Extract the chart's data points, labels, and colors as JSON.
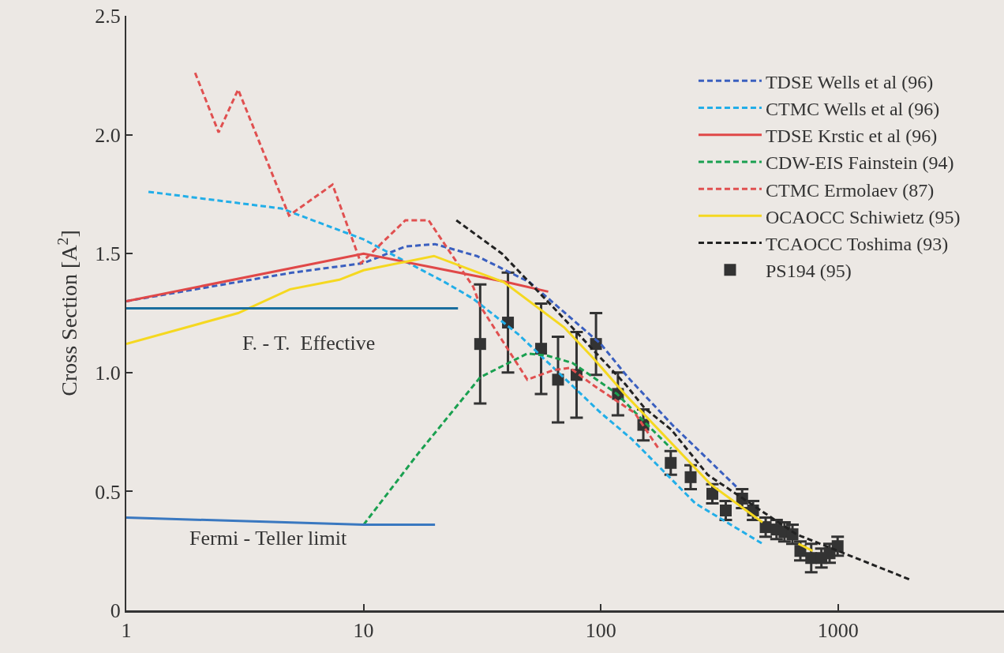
{
  "chart_data": {
    "type": "line",
    "ylabel": "Cross Section [A$^{2}$]",
    "log": "x",
    "xlim": [
      1,
      5000
    ],
    "xticks": [
      1,
      10,
      100,
      1000
    ],
    "ylim": [
      0,
      2.5
    ],
    "yticks": [
      {
        "value": 0,
        "label": "0"
      },
      {
        "value": 0.5,
        "label": "0.5"
      },
      {
        "value": 1,
        "label": "1.0"
      },
      {
        "value": 1.5,
        "label": "1.5"
      },
      {
        "value": 2,
        "label": "2.0"
      },
      {
        "value": 2.5,
        "label": "2.5"
      }
    ],
    "grid": false,
    "legend": "top right",
    "marker": "none",
    "annotations": [
      "F. - T.  Effective",
      "Fermi - Teller limit"
    ],
    "series": [
      {
        "name": "TDSE Wells et al (96)",
        "color": "#3a5fbf",
        "line_style": "dashed",
        "x": [
          1,
          5,
          10,
          15,
          20,
          30,
          50,
          100,
          130,
          200,
          372
        ],
        "values": [
          1.3,
          1.42,
          1.46,
          1.53,
          1.54,
          1.49,
          1.38,
          1.12,
          0.98,
          0.78,
          0.52
        ]
      },
      {
        "name": "CTMC Wells et al (96)",
        "color": "#22aee8",
        "line_style": "dashed",
        "x": [
          1.24,
          4.5,
          10,
          22,
          29,
          45,
          100,
          135,
          250,
          480
        ],
        "values": [
          1.76,
          1.69,
          1.56,
          1.38,
          1.31,
          1.16,
          0.83,
          0.72,
          0.45,
          0.28
        ]
      },
      {
        "name": "TDSE Krstic et al (96)",
        "color": "#e04848",
        "line_style": "solid",
        "x": [
          1,
          10,
          20,
          40,
          60
        ],
        "values": [
          1.3,
          1.5,
          1.44,
          1.38,
          1.34
        ]
      },
      {
        "name": "CDW-EIS Fainstein (94)",
        "color": "#1aa050",
        "line_style": "dashed",
        "x": [
          10,
          17,
          31,
          49,
          60,
          76,
          93,
          117,
          150,
          198
        ],
        "values": [
          0.36,
          0.66,
          0.98,
          1.08,
          1.07,
          1.04,
          0.98,
          0.91,
          0.8,
          0.68
        ]
      },
      {
        "name": "CTMC Ermolaev (87)",
        "color": "#e05050",
        "line_style": "dashed",
        "x": [
          1.95,
          2.45,
          2.96,
          4.85,
          7.4,
          9.75,
          15,
          18.8,
          29,
          31,
          49,
          63,
          74,
          95,
          139,
          175
        ],
        "values": [
          2.26,
          2.01,
          2.19,
          1.66,
          1.79,
          1.46,
          1.64,
          1.64,
          1.36,
          1.28,
          0.97,
          1.01,
          1.02,
          0.94,
          0.83,
          0.68
        ]
      },
      {
        "name": "OCAOCC Schiwietz (95)",
        "color": "#f5d820",
        "line_style": "solid",
        "x": [
          1,
          2.96,
          4.9,
          7.9,
          10,
          19.8,
          39,
          70,
          93,
          126,
          290,
          480,
          600,
          680,
          780
        ],
        "values": [
          1.12,
          1.25,
          1.35,
          1.39,
          1.43,
          1.49,
          1.38,
          1.19,
          1.06,
          0.91,
          0.53,
          0.37,
          null,
          0.28,
          0.25
        ]
      },
      {
        "name": "TCAOCC Toshima (93)",
        "color": "#222222",
        "line_style": "dashed",
        "x": [
          24.6,
          38.3,
          65,
          127,
          153,
          198,
          282,
          666,
          2000
        ],
        "values": [
          1.64,
          1.5,
          1.26,
          0.95,
          0.85,
          0.76,
          0.57,
          0.32,
          0.13
        ]
      },
      {
        "name": "PS194 (95)",
        "type": "scatter",
        "marker": "square",
        "color": "#333333",
        "x": [
          31,
          40.6,
          56,
          66,
          79,
          95.4,
          118,
          151,
          197,
          239,
          295,
          336,
          394,
          438,
          495,
          550,
          594,
          642,
          693,
          770,
          850,
          920,
          995
        ],
        "values": [
          1.12,
          1.21,
          1.1,
          0.97,
          0.99,
          1.12,
          0.91,
          0.78,
          0.62,
          0.56,
          0.49,
          0.42,
          0.47,
          0.42,
          0.35,
          0.34,
          0.33,
          0.32,
          0.25,
          0.22,
          0.22,
          0.24,
          0.27
        ],
        "errors": [
          0.25,
          0.21,
          0.19,
          0.18,
          0.18,
          0.13,
          0.09,
          0.065,
          0.05,
          0.05,
          0.04,
          0.04,
          0.04,
          0.04,
          0.04,
          0.04,
          0.04,
          0.04,
          0.04,
          0.06,
          0.04,
          0.04,
          0.04
        ]
      },
      {
        "color": "#1a6e9e",
        "line_style": "solid",
        "x": [
          1,
          25
        ],
        "values": [
          1.27,
          1.27
        ]
      },
      {
        "color": "#3a78c0",
        "line_style": "solid",
        "x": [
          1,
          10,
          20
        ],
        "values": [
          0.39,
          0.36,
          0.36
        ]
      }
    ]
  }
}
